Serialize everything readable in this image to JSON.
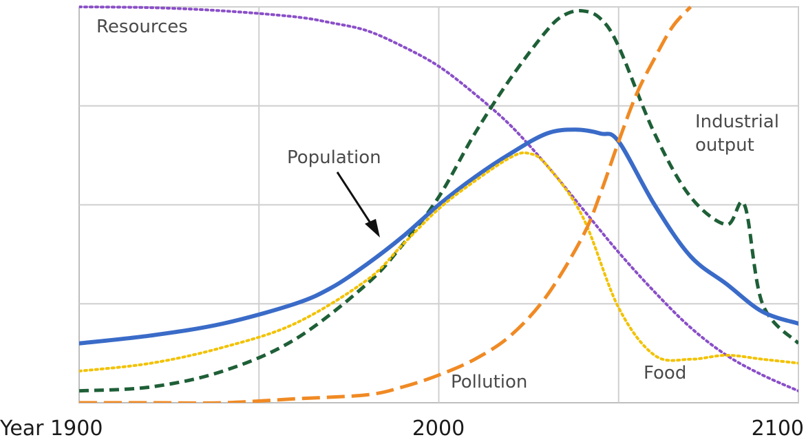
{
  "chart_data": {
    "type": "line",
    "title": "",
    "xlabel": "",
    "ylabel": "",
    "xlim": [
      1900,
      2100
    ],
    "ylim": [
      0,
      1
    ],
    "grid": true,
    "x_ticks": [
      {
        "value": 1900,
        "label": "Year 1900"
      },
      {
        "value": 2000,
        "label": "2000"
      },
      {
        "value": 2100,
        "label": "2100"
      }
    ],
    "grid_x": [
      1950,
      2000,
      2050,
      2100
    ],
    "grid_y": [
      0.25,
      0.5,
      0.75,
      1.0
    ],
    "series": [
      {
        "name": "Resources",
        "color": "#8a4fc8",
        "style": "dotted",
        "x": [
          1900,
          1920,
          1940,
          1960,
          1970,
          1980,
          1990,
          2000,
          2010,
          2020,
          2030,
          2040,
          2050,
          2060,
          2070,
          2080,
          2090,
          2100
        ],
        "y": [
          1.0,
          0.998,
          0.99,
          0.975,
          0.96,
          0.94,
          0.9,
          0.85,
          0.78,
          0.7,
          0.6,
          0.49,
          0.38,
          0.28,
          0.19,
          0.12,
          0.07,
          0.03
        ]
      },
      {
        "name": "Industrial output",
        "color": "#1e5f37",
        "style": "dashed",
        "x": [
          1900,
          1920,
          1940,
          1960,
          1980,
          1990,
          2000,
          2010,
          2020,
          2030,
          2035,
          2040,
          2045,
          2050,
          2060,
          2070,
          2080,
          2085,
          2090,
          2100
        ],
        "y": [
          0.03,
          0.04,
          0.08,
          0.16,
          0.3,
          0.4,
          0.52,
          0.68,
          0.82,
          0.94,
          0.98,
          0.99,
          0.97,
          0.9,
          0.68,
          0.52,
          0.45,
          0.5,
          0.25,
          0.15
        ]
      },
      {
        "name": "Population",
        "color": "#3a6bc8",
        "style": "solid",
        "x": [
          1900,
          1920,
          1940,
          1960,
          1970,
          1980,
          1990,
          2000,
          2010,
          2020,
          2030,
          2038,
          2045,
          2050,
          2060,
          2070,
          2080,
          2090,
          2100
        ],
        "y": [
          0.15,
          0.17,
          0.2,
          0.25,
          0.29,
          0.35,
          0.42,
          0.5,
          0.57,
          0.63,
          0.68,
          0.69,
          0.68,
          0.66,
          0.5,
          0.37,
          0.3,
          0.23,
          0.2
        ]
      },
      {
        "name": "Food",
        "color": "#f2c200",
        "style": "dotted",
        "x": [
          1900,
          1920,
          1940,
          1960,
          1980,
          1990,
          2000,
          2010,
          2020,
          2025,
          2030,
          2040,
          2050,
          2060,
          2070,
          2080,
          2090,
          2100
        ],
        "y": [
          0.08,
          0.1,
          0.14,
          0.2,
          0.31,
          0.4,
          0.49,
          0.56,
          0.62,
          0.63,
          0.6,
          0.47,
          0.24,
          0.12,
          0.11,
          0.12,
          0.11,
          0.1
        ]
      },
      {
        "name": "Pollution",
        "color": "#f08a24",
        "style": "longdash",
        "x": [
          1900,
          1920,
          1940,
          1960,
          1980,
          1990,
          2000,
          2010,
          2020,
          2030,
          2040,
          2045,
          2050,
          2055,
          2060,
          2065,
          2070
        ],
        "y": [
          0.0,
          0.0,
          0.0,
          0.01,
          0.02,
          0.04,
          0.07,
          0.11,
          0.17,
          0.27,
          0.42,
          0.53,
          0.66,
          0.78,
          0.87,
          0.95,
          1.0
        ]
      }
    ],
    "annotations": [
      {
        "text": "Resources",
        "series": "Resources"
      },
      {
        "text": "Industrial",
        "series": "Industrial output"
      },
      {
        "text": "output",
        "series": "Industrial output"
      },
      {
        "text": "Population",
        "series": "Population"
      },
      {
        "text": "Food",
        "series": "Food"
      },
      {
        "text": "Pollution",
        "series": "Pollution"
      }
    ]
  }
}
